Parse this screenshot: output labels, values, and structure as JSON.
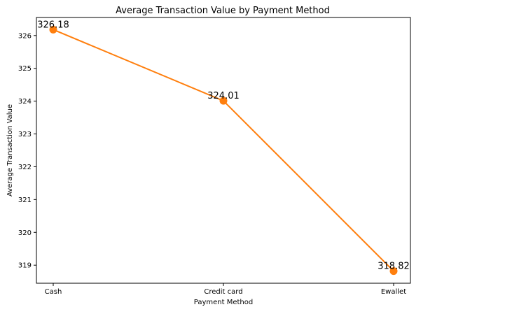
{
  "chart_data": {
    "type": "line",
    "title": "Average Transaction Value by Payment Method",
    "xlabel": "Payment Method",
    "ylabel": "Average Transaction Value",
    "categories": [
      "Cash",
      "Credit card",
      "Ewallet"
    ],
    "series": [
      {
        "values": [
          326.18,
          324.01,
          318.82
        ],
        "color": "#ff7f0e"
      }
    ],
    "data_labels": [
      "326.18",
      "324.01",
      "318.82"
    ],
    "ylim": [
      318.45,
      326.55
    ],
    "yticks": [
      319,
      320,
      321,
      322,
      323,
      324,
      325,
      326
    ],
    "grid": false,
    "legend": "none"
  }
}
